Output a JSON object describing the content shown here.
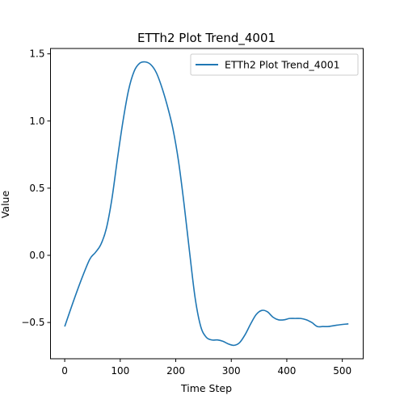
{
  "chart_data": {
    "type": "line",
    "title": "ETTh2 Plot Trend_4001",
    "xlabel": "Time Step",
    "ylabel": "Value",
    "xlim": [
      -25.6,
      537.6
    ],
    "ylim": [
      -0.77,
      1.54
    ],
    "xticks": [
      0,
      100,
      200,
      300,
      400,
      500
    ],
    "yticks": [
      -0.5,
      0.0,
      0.5,
      1.0,
      1.5
    ],
    "ytick_labels": [
      "−0.5",
      "0.0",
      "0.5",
      "1.0",
      "1.5"
    ],
    "grid": false,
    "legend_position": "top-right",
    "series": [
      {
        "name": "ETTh2 Plot Trend_4001",
        "color": "#1f77b4",
        "x": [
          0,
          15,
          30,
          45,
          55,
          65,
          75,
          85,
          95,
          105,
          115,
          125,
          135,
          145,
          155,
          165,
          175,
          185,
          195,
          205,
          215,
          225,
          235,
          245,
          255,
          265,
          275,
          285,
          295,
          305,
          315,
          325,
          335,
          345,
          355,
          365,
          375,
          385,
          395,
          405,
          415,
          425,
          435,
          445,
          455,
          465,
          475,
          490,
          511
        ],
        "y": [
          -0.53,
          -0.35,
          -0.18,
          -0.03,
          0.02,
          0.08,
          0.2,
          0.42,
          0.72,
          1.0,
          1.23,
          1.37,
          1.43,
          1.44,
          1.42,
          1.36,
          1.25,
          1.11,
          0.94,
          0.7,
          0.38,
          0.02,
          -0.32,
          -0.53,
          -0.61,
          -0.63,
          -0.63,
          -0.64,
          -0.66,
          -0.67,
          -0.65,
          -0.59,
          -0.51,
          -0.44,
          -0.41,
          -0.42,
          -0.46,
          -0.48,
          -0.48,
          -0.47,
          -0.47,
          -0.47,
          -0.48,
          -0.5,
          -0.53,
          -0.53,
          -0.53,
          -0.52,
          -0.51
        ]
      }
    ]
  }
}
